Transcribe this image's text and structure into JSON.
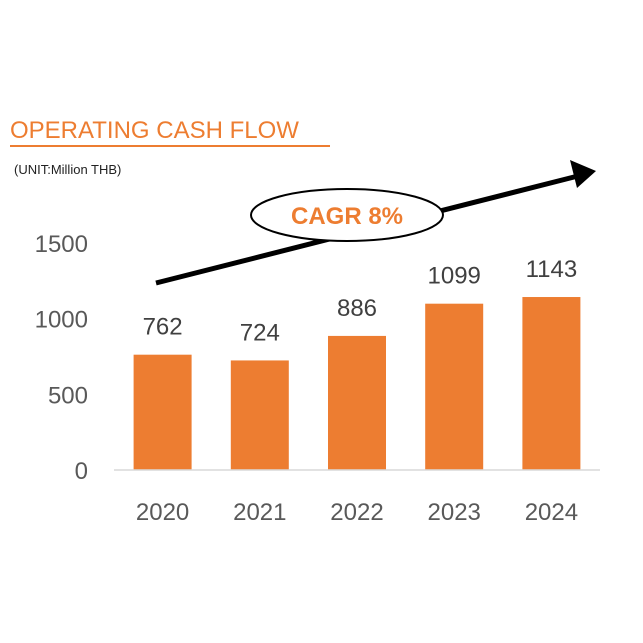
{
  "header": {
    "title": "OPERATING CASH FLOW",
    "unit": "(UNIT:Million  THB)"
  },
  "annotation": {
    "cagr": "CAGR 8%"
  },
  "colors": {
    "accent": "#ED7D31",
    "bar": "#ED7D31",
    "tick_text": "#595959",
    "arrow": "#000000"
  },
  "chart_data": {
    "type": "bar",
    "title": "OPERATING CASH FLOW",
    "categories": [
      "2020",
      "2021",
      "2022",
      "2023",
      "2024"
    ],
    "values": [
      762,
      724,
      886,
      1099,
      1143
    ],
    "data_labels": [
      "762",
      "724",
      "886",
      "1099",
      "1143"
    ],
    "yticks": [
      0,
      500,
      1000,
      1500
    ],
    "ylim": [
      0,
      1500
    ],
    "grid": false,
    "legend": "none",
    "annotations": [
      "CAGR 8%"
    ]
  }
}
